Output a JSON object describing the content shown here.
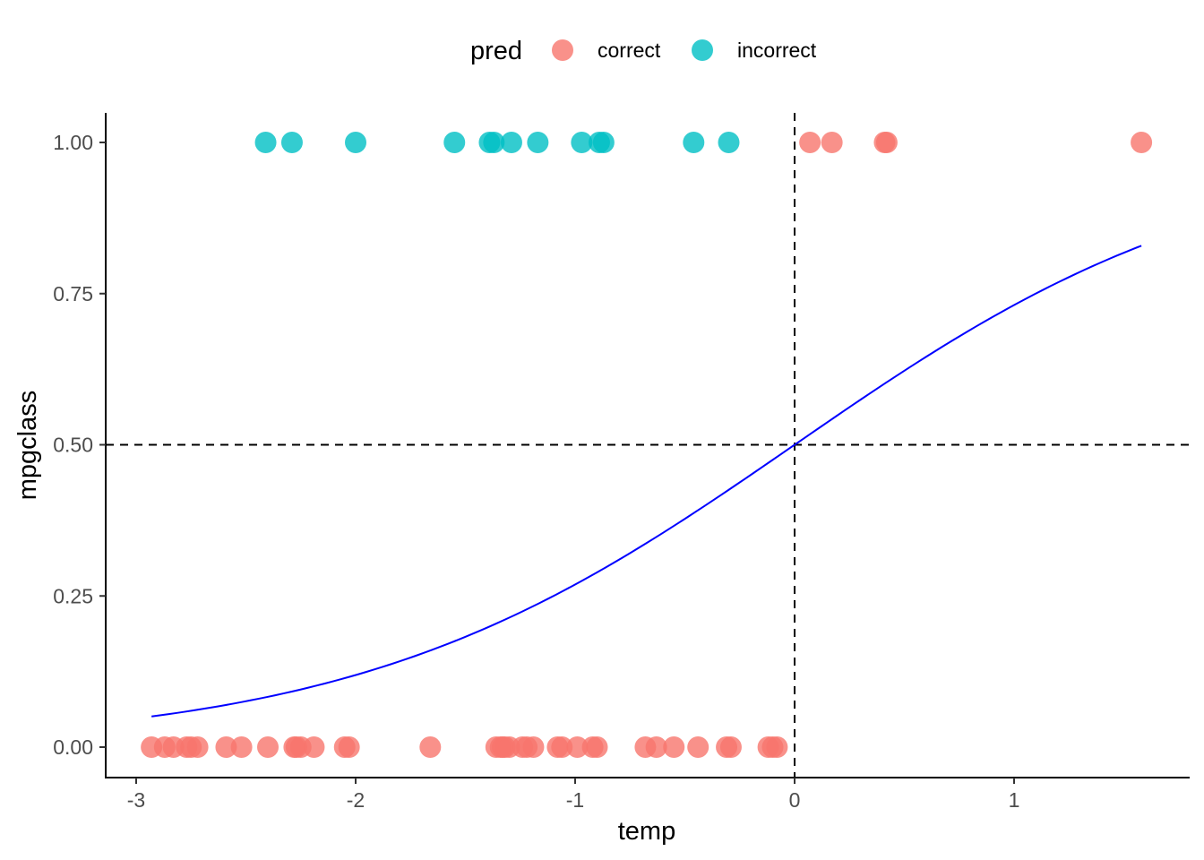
{
  "chart_data": {
    "type": "scatter",
    "xlabel": "temp",
    "ylabel": "mpgclass",
    "xlim": [
      -3.15,
      1.8
    ],
    "ylim": [
      -0.1,
      1.05
    ],
    "x_ticks": [
      -3,
      -2,
      -1,
      0,
      1
    ],
    "x_tick_labels": [
      "-3",
      "-2",
      "-1",
      "0",
      "1"
    ],
    "y_ticks": [
      0,
      0.25,
      0.5,
      0.75,
      1
    ],
    "y_tick_labels": [
      "0.00",
      "0.25",
      "0.50",
      "0.75",
      "1.00"
    ],
    "grid": false,
    "legend": {
      "title": "pred",
      "placement": "top",
      "entries": [
        {
          "label": "correct",
          "color": "#F8766D"
        },
        {
          "label": "incorrect",
          "color": "#00BFC4"
        }
      ]
    },
    "reference_lines": {
      "vertical_x": 0,
      "horizontal_y": 0.5,
      "style": "dashed",
      "color": "#000000"
    },
    "series": [
      {
        "name": "correct",
        "color": "#F8766D",
        "points": [
          [
            -2.93,
            0
          ],
          [
            -2.87,
            0
          ],
          [
            -2.83,
            0
          ],
          [
            -2.77,
            0
          ],
          [
            -2.75,
            0
          ],
          [
            -2.72,
            0
          ],
          [
            -2.59,
            0
          ],
          [
            -2.52,
            0
          ],
          [
            -2.4,
            0
          ],
          [
            -2.28,
            0
          ],
          [
            -2.27,
            0
          ],
          [
            -2.25,
            0
          ],
          [
            -2.19,
            0
          ],
          [
            -2.05,
            0
          ],
          [
            -2.03,
            0
          ],
          [
            -1.66,
            0
          ],
          [
            -1.36,
            0
          ],
          [
            -1.34,
            0
          ],
          [
            -1.33,
            0
          ],
          [
            -1.32,
            0
          ],
          [
            -1.3,
            0
          ],
          [
            -1.24,
            0
          ],
          [
            -1.22,
            0
          ],
          [
            -1.19,
            0
          ],
          [
            -1.08,
            0
          ],
          [
            -1.06,
            0
          ],
          [
            -0.99,
            0
          ],
          [
            -0.92,
            0
          ],
          [
            -0.9,
            0
          ],
          [
            -0.68,
            0
          ],
          [
            -0.63,
            0
          ],
          [
            -0.55,
            0
          ],
          [
            -0.44,
            0
          ],
          [
            -0.31,
            0
          ],
          [
            -0.29,
            0
          ],
          [
            -0.12,
            0
          ],
          [
            -0.1,
            0
          ],
          [
            -0.08,
            0
          ],
          [
            0.07,
            1
          ],
          [
            0.17,
            1
          ],
          [
            0.41,
            1
          ],
          [
            0.42,
            1
          ],
          [
            1.58,
            1
          ]
        ]
      },
      {
        "name": "incorrect",
        "color": "#00BFC4",
        "points": [
          [
            -2.41,
            1
          ],
          [
            -2.29,
            1
          ],
          [
            -2.0,
            1
          ],
          [
            -1.55,
            1
          ],
          [
            -1.39,
            1
          ],
          [
            -1.37,
            1
          ],
          [
            -1.29,
            1
          ],
          [
            -1.17,
            1
          ],
          [
            -0.97,
            1
          ],
          [
            -0.89,
            1
          ],
          [
            -0.87,
            1
          ],
          [
            -0.46,
            1
          ],
          [
            -0.3,
            1
          ]
        ]
      }
    ],
    "fit_curve": {
      "type": "logistic",
      "intercept": 0.0,
      "slope": 1.0,
      "x_range": [
        -2.93,
        1.58
      ],
      "color": "#0000FF"
    }
  }
}
